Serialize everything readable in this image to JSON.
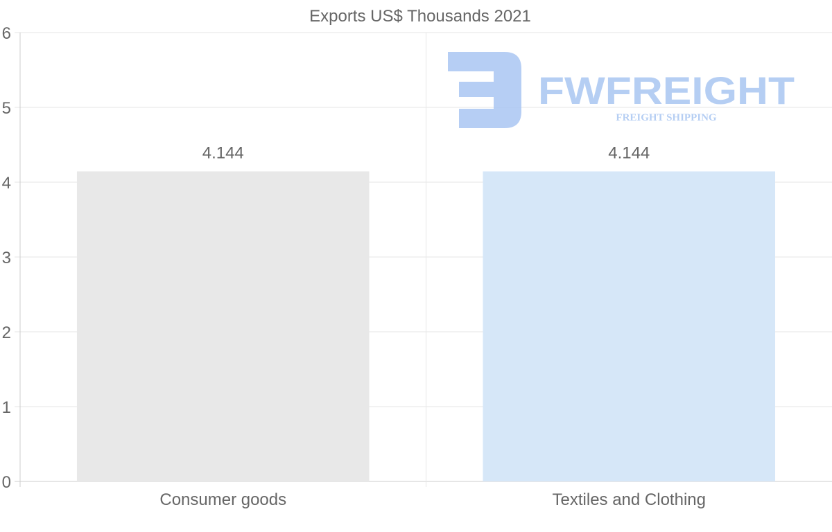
{
  "chart_data": {
    "type": "bar",
    "title": "Exports US$ Thousands 2021",
    "categories": [
      "Consumer goods",
      "Textiles and Clothing"
    ],
    "values": [
      4.144,
      4.144
    ],
    "data_labels": [
      "4.144",
      "4.144"
    ],
    "colors": [
      "#e8e8e8",
      "#d6e7f8"
    ],
    "xlabel": "",
    "ylabel": "",
    "ylim": [
      0,
      6
    ],
    "yticks": [
      "0",
      "1",
      "2",
      "3",
      "4",
      "5",
      "6"
    ],
    "grid": true,
    "legend": "none"
  },
  "watermark": {
    "brand": "FWFREIGHT",
    "tagline": "FREIGHT SHIPPING",
    "color": "#a9c6f2"
  }
}
